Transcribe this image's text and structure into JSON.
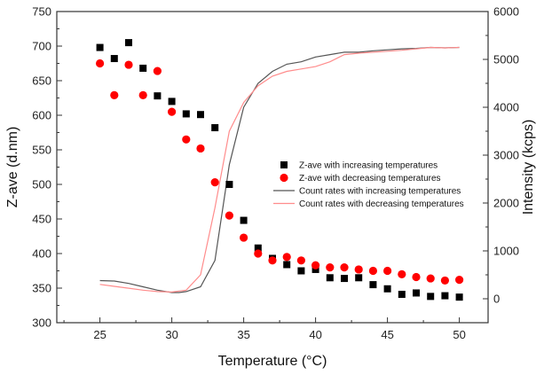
{
  "chart_data": {
    "type": "scatter",
    "xlabel": "Temperature (°C)",
    "ylabel": "Z-ave (d.nm)",
    "y2label": "Intensity (kcps)",
    "xlim": [
      22,
      52
    ],
    "ylim": [
      300,
      750
    ],
    "y2lim": [
      -500,
      6000
    ],
    "xticks": [
      25,
      30,
      35,
      40,
      45,
      50
    ],
    "yticks": [
      300,
      350,
      400,
      450,
      500,
      550,
      600,
      650,
      700,
      750
    ],
    "y2ticks": [
      0,
      1000,
      2000,
      3000,
      4000,
      5000,
      6000
    ],
    "legend_position": "center-right",
    "series": [
      {
        "name": "Z-ave with increasing temperatures",
        "kind": "scatter",
        "marker": "square",
        "axis": "left",
        "color": "#000000",
        "x": [
          25,
          26,
          27,
          28,
          29,
          30,
          31,
          32,
          33,
          34,
          35,
          36,
          37,
          38,
          39,
          40,
          41,
          42,
          43,
          44,
          45,
          46,
          47,
          48,
          49,
          50
        ],
        "y": [
          698,
          682,
          705,
          668,
          628,
          620,
          602,
          601,
          582,
          500,
          448,
          408,
          393,
          384,
          375,
          377,
          365,
          364,
          365,
          355,
          349,
          341,
          343,
          338,
          339,
          337
        ]
      },
      {
        "name": "Z-ave with decreasing temperatures",
        "kind": "scatter",
        "marker": "circle",
        "axis": "left",
        "color": "#ff0000",
        "x": [
          25,
          26,
          27,
          28,
          29,
          30,
          31,
          32,
          33,
          34,
          35,
          36,
          37,
          38,
          39,
          40,
          41,
          42,
          43,
          44,
          45,
          46,
          47,
          48,
          49,
          50
        ],
        "y": [
          675,
          629,
          673,
          629,
          664,
          605,
          565,
          552,
          503,
          455,
          423,
          400,
          390,
          395,
          390,
          383,
          380,
          380,
          377,
          375,
          375,
          370,
          366,
          364,
          361,
          362
        ]
      },
      {
        "name": "Count rates with increasing temperatures",
        "kind": "line",
        "axis": "right",
        "color": "#555555",
        "x": [
          25,
          26,
          27,
          28,
          29,
          30,
          30.5,
          31,
          32,
          33,
          34,
          35,
          36,
          37,
          38,
          39,
          40,
          41,
          42,
          43,
          44,
          45,
          46,
          47,
          48,
          49,
          50
        ],
        "y": [
          380,
          370,
          320,
          250,
          180,
          130,
          130,
          150,
          250,
          800,
          2800,
          4000,
          4500,
          4750,
          4900,
          4950,
          5050,
          5100,
          5150,
          5150,
          5180,
          5200,
          5220,
          5230,
          5250,
          5240,
          5250
        ]
      },
      {
        "name": "Count rates with decreasing temperatures",
        "kind": "line",
        "axis": "right",
        "color": "#ff8c8c",
        "x": [
          25,
          26,
          27,
          28,
          29,
          30,
          31,
          32,
          33,
          34,
          35,
          36,
          37,
          38,
          39,
          40,
          41,
          42,
          43,
          44,
          45,
          46,
          47,
          48,
          49,
          50
        ],
        "y": [
          300,
          260,
          220,
          180,
          150,
          140,
          180,
          500,
          1900,
          3500,
          4100,
          4450,
          4650,
          4750,
          4800,
          4850,
          4950,
          5100,
          5130,
          5150,
          5170,
          5190,
          5220,
          5250,
          5240,
          5250
        ]
      }
    ]
  }
}
